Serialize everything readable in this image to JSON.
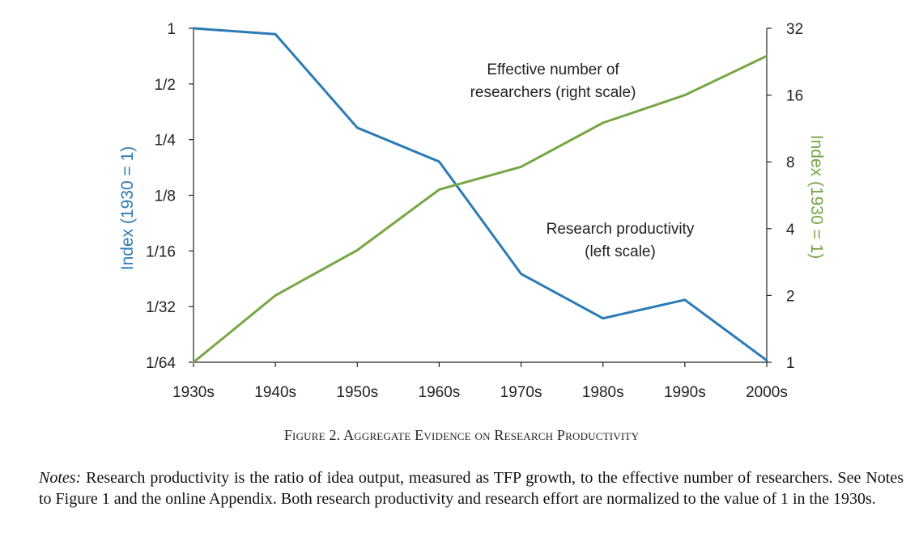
{
  "chart_data": {
    "type": "line",
    "categories": [
      "1930s",
      "1940s",
      "1950s",
      "1960s",
      "1970s",
      "1980s",
      "1990s",
      "2000s"
    ],
    "series": [
      {
        "name": "Research productivity (left scale)",
        "axis": "left",
        "color": "#2b7bb5",
        "values": [
          1,
          0.93,
          0.29,
          0.19,
          0.047,
          0.027,
          0.034,
          0.016
        ]
      },
      {
        "name": "Effective number of researchers (right scale)",
        "axis": "right",
        "color": "#77a644",
        "values": [
          1,
          2.0,
          3.2,
          6.0,
          7.6,
          12.0,
          16.0,
          24.0
        ]
      }
    ],
    "y_left": {
      "label": "Index (1930 = 1)",
      "scale": "log2",
      "range": [
        0.015625,
        1
      ],
      "ticks": [
        1,
        0.5,
        0.25,
        0.125,
        0.0625,
        0.03125,
        0.015625
      ],
      "tick_labels": [
        "1",
        "1/2",
        "1/4",
        "1/8",
        "1/16",
        "1/32",
        "1/64"
      ],
      "color": "#2b7bb5"
    },
    "y_right": {
      "label": "Index (1930 = 1)",
      "scale": "log2",
      "range": [
        1,
        32
      ],
      "ticks": [
        1,
        2,
        4,
        8,
        16,
        32
      ],
      "tick_labels": [
        "1",
        "2",
        "4",
        "8",
        "16",
        "32"
      ],
      "color": "#77a644"
    },
    "annotations": [
      {
        "lines": [
          "Effective number of",
          "researchers (right scale)"
        ]
      },
      {
        "lines": [
          "Research productivity",
          "(left scale)"
        ]
      }
    ],
    "grid": false
  },
  "caption": "Figure 2. Aggregate Evidence on Research Productivity",
  "notes": {
    "label": "Notes:",
    "text": " Research productivity is the ratio of idea output, measured as TFP growth, to the effective number of researchers. See Notes to Figure 1 and the online Appendix. Both research productivity and research effort are normalized to the value of 1 in the 1930s."
  }
}
